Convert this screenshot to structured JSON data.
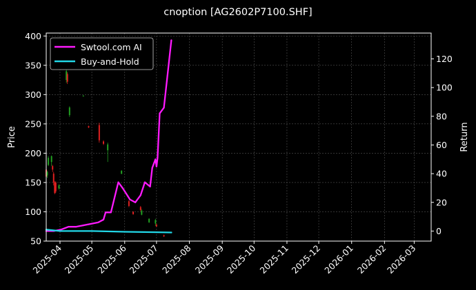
{
  "chart_data": {
    "type": "line",
    "title": "cnoption [AG2602P7100.SHF]",
    "xlabel": "",
    "ylabel": "Price",
    "y2label": "Return",
    "grid": true,
    "legend_position": "top-left",
    "x_range": [
      "2025-03-19",
      "2026-03-17"
    ],
    "xticks": [
      "2025-04",
      "2025-05",
      "2025-06",
      "2025-07",
      "2025-08",
      "2025-09",
      "2025-10",
      "2025-11",
      "2025-12",
      "2026-01",
      "2026-02",
      "2026-03"
    ],
    "xtick_dates": [
      "2025-04-01",
      "2025-05-01",
      "2025-06-01",
      "2025-07-01",
      "2025-08-01",
      "2025-09-01",
      "2025-10-01",
      "2025-11-01",
      "2025-12-01",
      "2026-01-01",
      "2026-02-01",
      "2026-03-01"
    ],
    "ylim": [
      50,
      405
    ],
    "yticks": [
      50,
      100,
      150,
      200,
      250,
      300,
      350,
      400
    ],
    "y2lim": [
      -7,
      138
    ],
    "y2ticks": [
      0,
      20,
      40,
      60,
      80,
      100,
      120
    ],
    "colors": {
      "up": "#22a022",
      "down": "#e02020",
      "strategy": "#ff1aff",
      "buyhold": "#22d8e8",
      "grid": "#555555"
    },
    "candles": [
      {
        "date": "2025-03-19",
        "open": 172,
        "close": 160,
        "high": 175,
        "low": 158
      },
      {
        "date": "2025-03-20",
        "open": 162,
        "close": 168,
        "high": 170,
        "low": 158
      },
      {
        "date": "2025-03-21",
        "open": 180,
        "close": 192,
        "high": 195,
        "low": 178
      },
      {
        "date": "2025-03-24",
        "open": 185,
        "close": 195,
        "high": 196,
        "low": 178
      },
      {
        "date": "2025-03-25",
        "open": 178,
        "close": 172,
        "high": 180,
        "low": 168
      },
      {
        "date": "2025-03-26",
        "open": 165,
        "close": 150,
        "high": 168,
        "low": 145
      },
      {
        "date": "2025-03-27",
        "open": 150,
        "close": 132,
        "high": 152,
        "low": 130
      },
      {
        "date": "2025-03-28",
        "open": 150,
        "close": 135,
        "high": 152,
        "low": 132
      },
      {
        "date": "2025-03-31",
        "open": 140,
        "close": 145,
        "high": 147,
        "low": 138
      },
      {
        "date": "2025-04-07",
        "open": 325,
        "close": 340,
        "high": 342,
        "low": 320
      },
      {
        "date": "2025-04-08",
        "open": 335,
        "close": 322,
        "high": 338,
        "low": 318
      },
      {
        "date": "2025-04-10",
        "open": 265,
        "close": 278,
        "high": 280,
        "low": 262
      },
      {
        "date": "2025-04-23",
        "open": 298,
        "close": 298,
        "high": 299,
        "low": 297
      },
      {
        "date": "2025-04-28",
        "open": 246,
        "close": 244,
        "high": 247,
        "low": 243
      },
      {
        "date": "2025-05-08",
        "open": 248,
        "close": 222,
        "high": 252,
        "low": 218
      },
      {
        "date": "2025-05-12",
        "open": 220,
        "close": 216,
        "high": 222,
        "low": 214
      },
      {
        "date": "2025-05-16",
        "open": 205,
        "close": 215,
        "high": 218,
        "low": 185
      },
      {
        "date": "2025-05-29",
        "open": 165,
        "close": 170,
        "high": 171,
        "low": 164
      },
      {
        "date": "2025-06-05",
        "open": 118,
        "close": 110,
        "high": 120,
        "low": 108
      },
      {
        "date": "2025-06-09",
        "open": 100,
        "close": 96,
        "high": 101,
        "low": 95
      },
      {
        "date": "2025-06-16",
        "open": 108,
        "close": 103,
        "high": 110,
        "low": 101
      },
      {
        "date": "2025-06-17",
        "open": 95,
        "close": 102,
        "high": 104,
        "low": 94
      },
      {
        "date": "2025-06-24",
        "open": 82,
        "close": 88,
        "high": 89,
        "low": 81
      },
      {
        "date": "2025-06-30",
        "open": 80,
        "close": 86,
        "high": 88,
        "low": 76
      },
      {
        "date": "2025-07-01",
        "open": 78,
        "close": 75,
        "high": 80,
        "low": 74
      },
      {
        "date": "2025-07-08",
        "open": 60,
        "close": 58,
        "high": 61,
        "low": 57
      }
    ],
    "series": [
      {
        "name": "Swtool.com AI",
        "x": [
          "2025-03-19",
          "2025-03-26",
          "2025-04-02",
          "2025-04-09",
          "2025-04-16",
          "2025-04-23",
          "2025-04-30",
          "2025-05-07",
          "2025-05-12",
          "2025-05-14",
          "2025-05-19",
          "2025-05-26",
          "2025-05-30",
          "2025-06-06",
          "2025-06-11",
          "2025-06-16",
          "2025-06-20",
          "2025-06-25",
          "2025-06-27",
          "2025-06-30",
          "2025-07-01",
          "2025-07-02",
          "2025-07-04",
          "2025-07-08",
          "2025-07-15"
        ],
        "values": [
          0,
          0,
          1,
          3,
          3,
          4,
          5,
          6,
          8,
          13,
          13,
          34,
          30,
          22,
          20,
          25,
          34,
          31,
          44,
          50,
          45,
          51,
          82,
          86,
          133
        ]
      },
      {
        "name": "Buy-and-Hold",
        "x": [
          "2025-03-19",
          "2025-04-01",
          "2025-05-01",
          "2025-06-01",
          "2025-07-01",
          "2025-07-15"
        ],
        "values": [
          1,
          0,
          0,
          -0.5,
          -0.8,
          -1
        ]
      }
    ]
  }
}
